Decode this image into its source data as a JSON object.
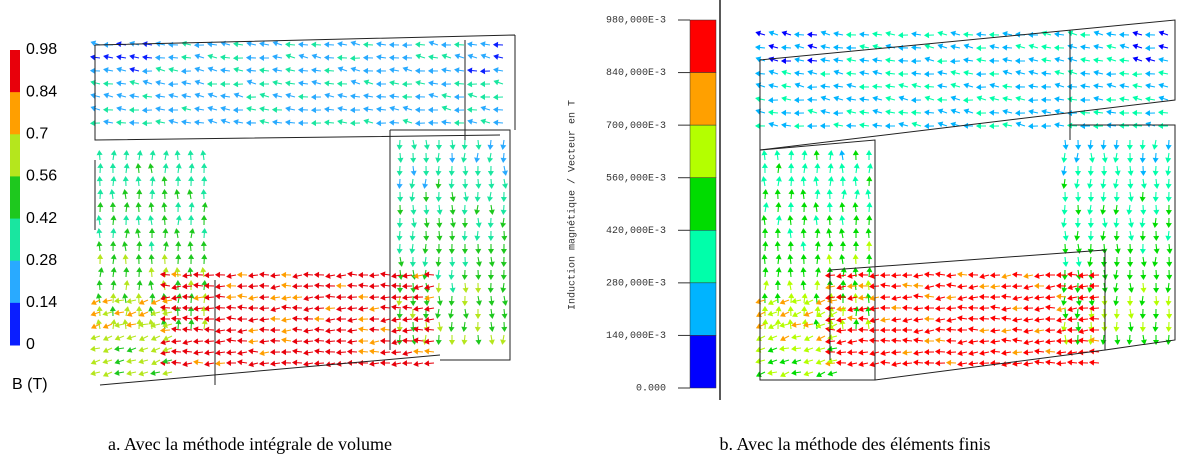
{
  "figures": [
    {
      "colorbar": {
        "labels": [
          "0.98",
          "0.84",
          "0.7",
          "0.56",
          "0.42",
          "0.28",
          "0.14",
          "0"
        ],
        "colors": [
          "#e8000b",
          "#ff9f00",
          "#b5e61d",
          "#1ec81e",
          "#19e6a0",
          "#29aaff",
          "#0a1eff"
        ]
      },
      "unit_label": "B (T)",
      "caption": "a. Avec la méthode intégrale de volume"
    },
    {
      "colorbar": {
        "labels": [
          "980,000E-3",
          "840,000E-3",
          "700,000E-3",
          "560,000E-3",
          "420,000E-3",
          "280,000E-3",
          "140,000E-3",
          "0.000"
        ],
        "colors": [
          "#ff0000",
          "#ffa000",
          "#b4ff00",
          "#00dc00",
          "#00ffaa",
          "#00b4ff",
          "#0000ff"
        ]
      },
      "axis_title": "Induction magnétique / Vecteur en T",
      "caption": "b. Avec la méthode des éléments finis"
    }
  ]
}
